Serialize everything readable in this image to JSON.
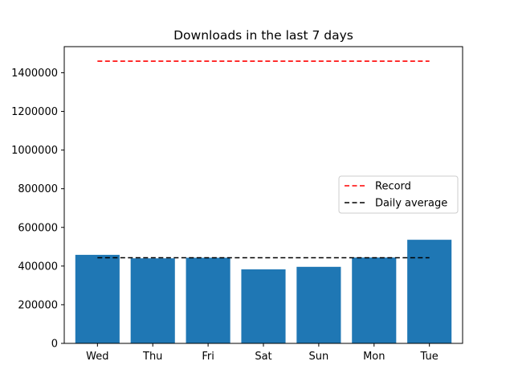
{
  "chart_data": {
    "type": "bar",
    "title": "Downloads in the last 7 days",
    "xlabel": "",
    "ylabel": "",
    "categories": [
      "Wed",
      "Thu",
      "Fri",
      "Sat",
      "Sun",
      "Mon",
      "Tue"
    ],
    "values": [
      458000,
      440000,
      443000,
      383000,
      396000,
      444000,
      536000
    ],
    "bar_color": "#1f77b4",
    "ylim": [
      0,
      1535000
    ],
    "yticks": [
      0,
      200000,
      400000,
      600000,
      800000,
      1000000,
      1200000,
      1400000
    ],
    "ytick_labels": [
      "0",
      "200000",
      "400000",
      "600000",
      "800000",
      "1000000",
      "1200000",
      "1400000"
    ],
    "reference_lines": [
      {
        "name": "Record",
        "value": 1460000,
        "color": "#ff0000",
        "style": "dashed"
      },
      {
        "name": "Daily average",
        "value": 443000,
        "color": "#000000",
        "style": "dashed"
      }
    ],
    "legend_position": "center-right",
    "grid": false
  }
}
